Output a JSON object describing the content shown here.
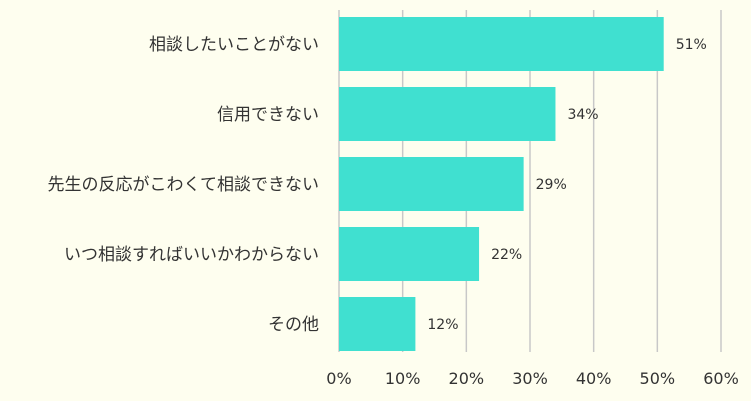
{
  "chart_data": {
    "type": "bar",
    "orientation": "horizontal",
    "categories": [
      "相談したいことがない",
      "信用できない",
      "先生の反応がこわくて相談できない",
      "いつ相談すればいいかわからない",
      "その他"
    ],
    "values": [
      51,
      34,
      29,
      22,
      12
    ],
    "value_labels": [
      "51%",
      "34%",
      "29%",
      "22%",
      "12%"
    ],
    "xlim": [
      0,
      60
    ],
    "xticks": [
      0,
      10,
      20,
      30,
      40,
      50,
      60
    ],
    "xtick_labels": [
      "0%",
      "10%",
      "20%",
      "30%",
      "40%",
      "50%",
      "60%"
    ],
    "title": "",
    "xlabel": "",
    "ylabel": "",
    "grid": "vertical",
    "legend": "none",
    "colors": {
      "bar": "#40e0d0",
      "background": "#fefeef",
      "grid": "#c8c8c8",
      "text": "#333333"
    }
  }
}
